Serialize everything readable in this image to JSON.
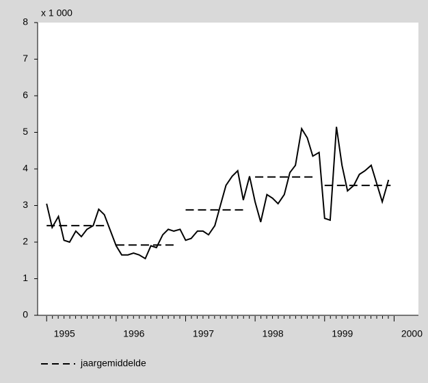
{
  "chart_data": {
    "type": "line",
    "unit_label": "x 1 000",
    "xlim": [
      1994.87,
      2000.35
    ],
    "xticks": [
      1995,
      1996,
      1997,
      1998,
      1999,
      2000
    ],
    "ylim": [
      0,
      8
    ],
    "yticks": [
      0,
      1,
      2,
      3,
      4,
      5,
      6,
      7,
      8
    ],
    "grid": false,
    "legend": "bottom-left",
    "series": [
      {
        "color": "#000000",
        "dash": false,
        "x": [
          1995.0,
          1995.08,
          1995.17,
          1995.25,
          1995.33,
          1995.42,
          1995.5,
          1995.58,
          1995.67,
          1995.75,
          1995.83,
          1995.92,
          1996.0,
          1996.08,
          1996.17,
          1996.25,
          1996.33,
          1996.42,
          1996.5,
          1996.58,
          1996.67,
          1996.75,
          1996.83,
          1996.92,
          1997.0,
          1997.08,
          1997.17,
          1997.25,
          1997.33,
          1997.42,
          1997.5,
          1997.58,
          1997.67,
          1997.75,
          1997.83,
          1997.92,
          1998.0,
          1998.08,
          1998.17,
          1998.25,
          1998.33,
          1998.42,
          1998.5,
          1998.58,
          1998.67,
          1998.75,
          1998.83,
          1998.92,
          1999.0,
          1999.08,
          1999.17,
          1999.25,
          1999.33,
          1999.42,
          1999.5,
          1999.58,
          1999.67,
          1999.75,
          1999.83,
          1999.92
        ],
        "values": [
          3.05,
          2.4,
          2.7,
          2.05,
          2.0,
          2.3,
          2.15,
          2.35,
          2.45,
          2.9,
          2.75,
          2.3,
          1.9,
          1.65,
          1.65,
          1.7,
          1.65,
          1.55,
          1.9,
          1.85,
          2.2,
          2.35,
          2.3,
          2.35,
          2.05,
          2.1,
          2.3,
          2.3,
          2.2,
          2.45,
          3.0,
          3.55,
          3.8,
          3.95,
          3.15,
          3.8,
          3.1,
          2.55,
          3.3,
          3.2,
          3.05,
          3.3,
          3.9,
          4.1,
          5.1,
          4.85,
          4.35,
          4.45,
          2.65,
          2.6,
          5.15,
          4.1,
          3.4,
          3.55,
          3.85,
          3.95,
          4.1,
          3.6,
          3.1,
          3.7
        ]
      },
      {
        "name": "jaargemiddelde",
        "color": "#000000",
        "dash": true,
        "x": [
          1995.0,
          1995.83,
          1995.9,
          1996.0,
          1996.83,
          1996.9,
          1997.0,
          1997.83,
          1997.9,
          1998.0,
          1998.83,
          1998.9,
          1999.0,
          1999.95
        ],
        "values": [
          2.45,
          2.45,
          null,
          1.92,
          1.92,
          null,
          2.88,
          2.88,
          null,
          3.78,
          3.78,
          null,
          3.55,
          3.55
        ]
      }
    ]
  }
}
